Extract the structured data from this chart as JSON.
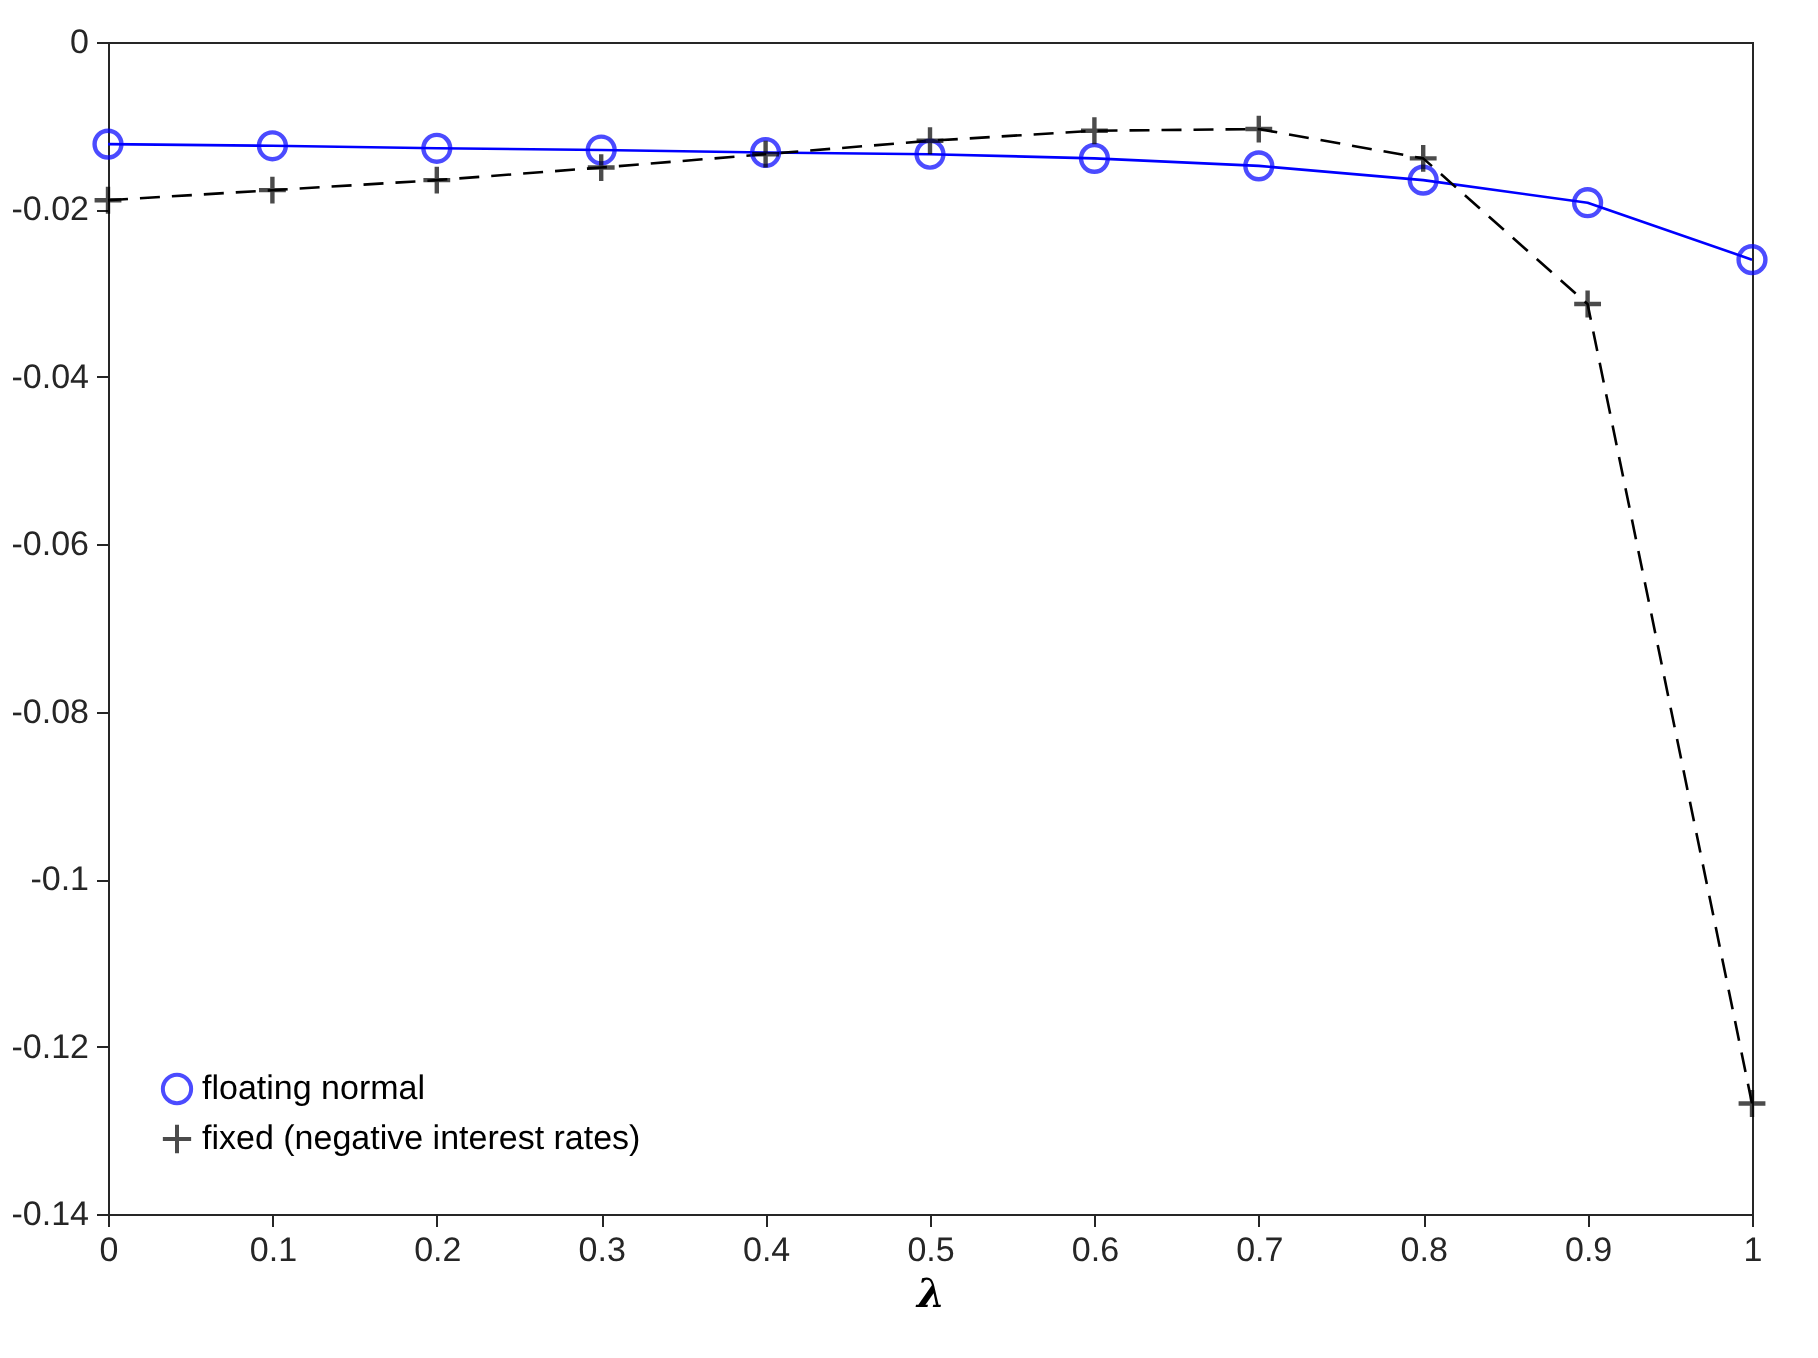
{
  "chart_data": {
    "type": "line",
    "xlabel": "λ",
    "x": [
      0,
      0.1,
      0.2,
      0.3,
      0.4,
      0.5,
      0.6,
      0.7,
      0.8,
      0.9,
      1
    ],
    "series": [
      {
        "name": "floating normal",
        "color": "#0000ff",
        "marker": "circle",
        "line_style": "solid",
        "values": [
          -0.0122,
          -0.0124,
          -0.0127,
          -0.0129,
          -0.0132,
          -0.0134,
          -0.0139,
          -0.0148,
          -0.0165,
          -0.0192,
          -0.026
        ]
      },
      {
        "name": "fixed (negative interest rates)",
        "color": "#000000",
        "marker": "cross",
        "line_style": "dashed",
        "values": [
          -0.0189,
          -0.0177,
          -0.0165,
          -0.015,
          -0.0134,
          -0.0118,
          -0.0106,
          -0.0104,
          -0.0139,
          -0.0313,
          -0.1268
        ]
      }
    ],
    "xlim": [
      0,
      1
    ],
    "xticks": [
      0,
      0.1,
      0.2,
      0.3,
      0.4,
      0.5,
      0.6,
      0.7,
      0.8,
      0.9,
      1
    ],
    "ylim": [
      -0.14,
      0
    ],
    "yticks": [
      -0.14,
      -0.12,
      -0.1,
      -0.08,
      -0.06,
      -0.04,
      -0.02,
      0
    ],
    "grid": false,
    "legend": "bottom left"
  }
}
